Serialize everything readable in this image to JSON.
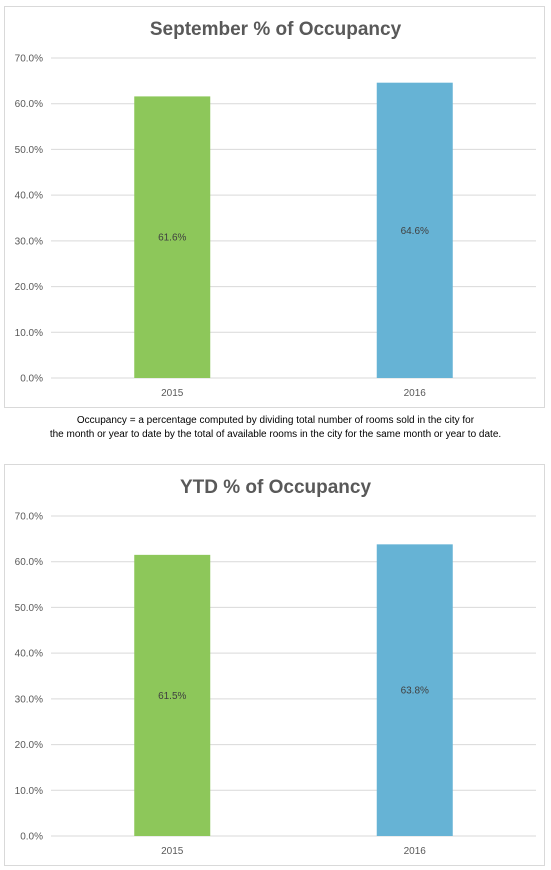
{
  "chart_data": [
    {
      "type": "bar",
      "title": "September % of Occupancy",
      "categories": [
        "2015",
        "2016"
      ],
      "values": [
        61.6,
        64.6
      ],
      "data_labels": [
        "61.6%",
        "64.6%"
      ],
      "colors": [
        "#8dc75a",
        "#66b3d5"
      ],
      "ylim": [
        0,
        70
      ],
      "yticks": [
        "0.0%",
        "10.0%",
        "20.0%",
        "30.0%",
        "40.0%",
        "50.0%",
        "60.0%",
        "70.0%"
      ],
      "grid": true,
      "legend": "none"
    },
    {
      "type": "bar",
      "title": "YTD % of Occupancy",
      "categories": [
        "2015",
        "2016"
      ],
      "values": [
        61.5,
        63.8
      ],
      "data_labels": [
        "61.5%",
        "63.8%"
      ],
      "colors": [
        "#8dc75a",
        "#66b3d5"
      ],
      "ylim": [
        0,
        70
      ],
      "yticks": [
        "0.0%",
        "10.0%",
        "20.0%",
        "30.0%",
        "40.0%",
        "50.0%",
        "60.0%",
        "70.0%"
      ],
      "grid": true,
      "legend": "none"
    }
  ],
  "note": {
    "line1": "Occupancy = a percentage computed by dividing total number of rooms sold in the city for",
    "line2": "the month or year to date by the total of available rooms in the city for the same month or year to date."
  }
}
